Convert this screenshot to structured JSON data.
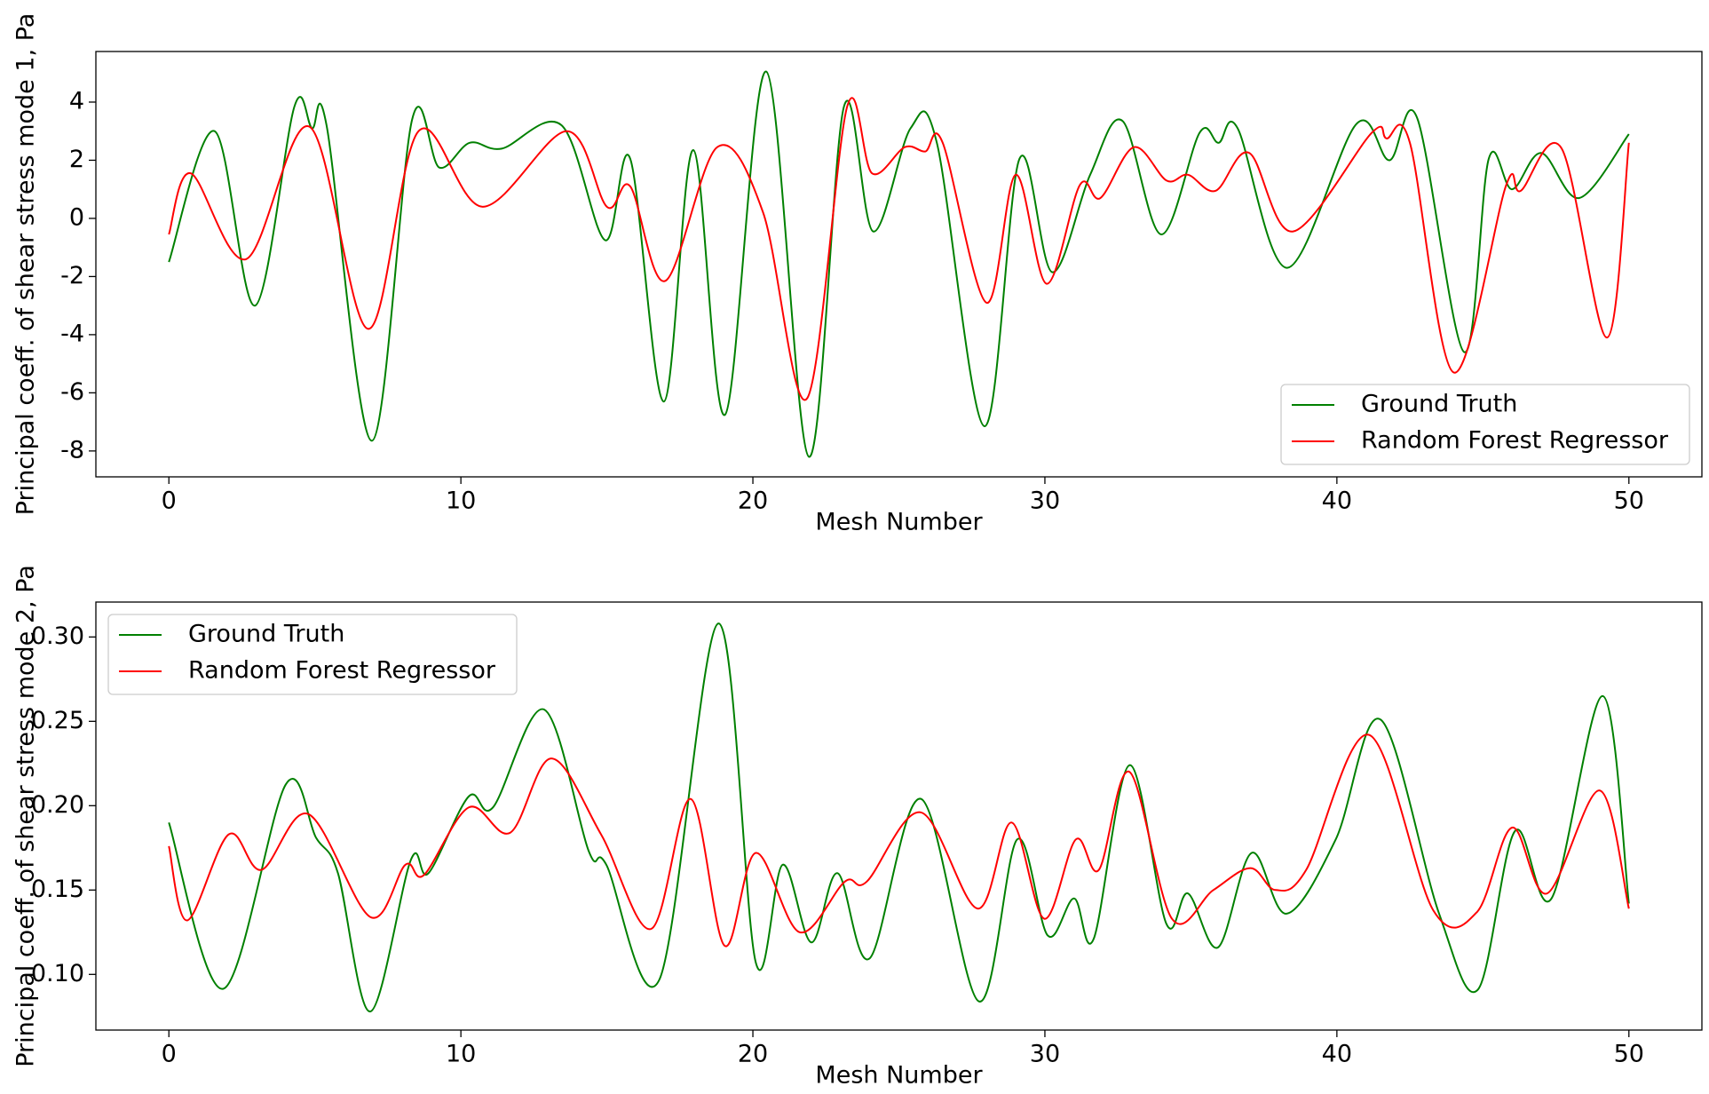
{
  "chart_data": [
    {
      "type": "line",
      "ylabel": "Principal coeff. of shear stress mode 1, Pa",
      "xlabel": "Mesh Number",
      "xlim": [
        -2.5,
        52.5
      ],
      "ylim": [
        -8.89,
        5.74
      ],
      "xticks": [
        0,
        10,
        20,
        30,
        40,
        50
      ],
      "yticks": [
        -8,
        -6,
        -4,
        -2,
        0,
        2,
        4
      ],
      "legend": "lower right",
      "series": [
        {
          "name": "Ground Truth",
          "color": "#008000",
          "x": [
            0,
            1.57,
            2.95,
            4.3,
            4.9,
            5.4,
            6.95,
            8.33,
            9.26,
            10.3,
            11.4,
            13.45,
            14.94,
            15.8,
            16.95,
            17.96,
            19.05,
            20.46,
            21.92,
            23.12,
            24.12,
            25.4,
            26.3,
            27.93,
            29.13,
            30.25,
            31.55,
            32.66,
            33.98,
            35.3,
            35.95,
            36.6,
            38.3,
            40.67,
            41.8,
            42.75,
            44.36,
            45.2,
            46.0,
            47.0,
            48.3,
            50
          ],
          "values": [
            -1.5,
            3.0,
            -3.0,
            3.85,
            3.1,
            3.2,
            -7.65,
            3.4,
            1.75,
            2.6,
            2.4,
            3.2,
            -0.75,
            2.05,
            -6.3,
            2.35,
            -6.75,
            5.05,
            -8.2,
            3.85,
            -0.45,
            3.1,
            2.6,
            -7.15,
            2.05,
            -1.85,
            1.5,
            3.35,
            -0.55,
            2.95,
            2.6,
            3.1,
            -1.7,
            3.25,
            2.0,
            3.45,
            -4.6,
            2.05,
            1.0,
            2.25,
            0.7,
            2.9
          ]
        },
        {
          "name": "Random Forest Regressor",
          "color": "#ff0000",
          "x": [
            0,
            0.75,
            2.65,
            4.82,
            6.83,
            8.55,
            10.75,
            13.63,
            15.0,
            15.8,
            17.0,
            18.78,
            20.35,
            21.85,
            23.23,
            24.08,
            25.2,
            25.9,
            26.5,
            28.0,
            29.0,
            30.06,
            31.2,
            31.9,
            33.05,
            34.17,
            34.9,
            35.85,
            37.0,
            38.5,
            41.2,
            41.7,
            42.5,
            44.0,
            45.8,
            46.3,
            47.7,
            49.25,
            50
          ],
          "values": [
            -0.55,
            1.55,
            -1.4,
            3.15,
            -3.8,
            3.0,
            0.4,
            3.0,
            0.4,
            1.1,
            -2.15,
            2.45,
            0.2,
            -6.2,
            3.85,
            1.55,
            2.45,
            2.3,
            2.6,
            -2.9,
            1.5,
            -2.25,
            1.15,
            0.7,
            2.45,
            1.3,
            1.5,
            0.95,
            2.25,
            -0.45,
            2.95,
            2.75,
            2.6,
            -5.3,
            1.15,
            0.95,
            2.4,
            -4.1,
            2.6
          ]
        }
      ]
    },
    {
      "type": "line",
      "ylabel": "Principal coeff. of shear stress mode 2, Pa",
      "xlabel": "Mesh Number",
      "xlim": [
        -2.5,
        52.5
      ],
      "ylim": [
        0.067,
        0.3207
      ],
      "xticks": [
        0,
        10,
        20,
        30,
        40,
        50
      ],
      "yticks": [
        {
          "value": 0.1,
          "label": "0.10"
        },
        {
          "value": 0.15,
          "label": "0.15"
        },
        {
          "value": 0.2,
          "label": "0.20"
        },
        {
          "value": 0.25,
          "label": "0.25"
        },
        {
          "value": 0.3,
          "label": "0.30"
        }
      ],
      "legend": "upper left",
      "series": [
        {
          "name": "Ground Truth",
          "color": "#008000",
          "x": [
            0,
            1.87,
            4.0,
            5.04,
            5.79,
            6.9,
            8.29,
            8.89,
            10.27,
            11.1,
            12.85,
            14.38,
            14.98,
            16.8,
            18.82,
            20.1,
            21.02,
            22.0,
            22.9,
            24.0,
            25.76,
            27.74,
            29.05,
            30.1,
            31.0,
            31.67,
            32.9,
            34.16,
            34.9,
            35.93,
            37.08,
            38.28,
            39.96,
            41.5,
            43.5,
            44.83,
            46.1,
            47.35,
            49.1,
            50
          ],
          "values": [
            0.19,
            0.0915,
            0.2125,
            0.181,
            0.16,
            0.078,
            0.168,
            0.16,
            0.2055,
            0.199,
            0.257,
            0.173,
            0.165,
            0.097,
            0.308,
            0.107,
            0.165,
            0.119,
            0.16,
            0.1095,
            0.204,
            0.084,
            0.18,
            0.123,
            0.145,
            0.121,
            0.224,
            0.13,
            0.148,
            0.116,
            0.172,
            0.136,
            0.18,
            0.251,
            0.136,
            0.091,
            0.185,
            0.145,
            0.265,
            0.142
          ]
        },
        {
          "name": "Random Forest Regressor",
          "color": "#ff0000",
          "x": [
            0,
            0.63,
            2.05,
            3.17,
            4.78,
            6.9,
            8.1,
            8.74,
            10.27,
            11.69,
            13.1,
            14.8,
            16.52,
            17.87,
            19.03,
            20.1,
            21.6,
            23.15,
            23.9,
            25.76,
            27.7,
            28.86,
            29.98,
            31.06,
            31.85,
            32.9,
            34.35,
            35.77,
            37.04,
            37.9,
            38.95,
            41.1,
            43.3,
            44.8,
            46.0,
            47.2,
            49.0,
            50
          ],
          "values": [
            0.176,
            0.132,
            0.183,
            0.162,
            0.195,
            0.134,
            0.165,
            0.159,
            0.199,
            0.184,
            0.228,
            0.183,
            0.127,
            0.204,
            0.117,
            0.172,
            0.125,
            0.155,
            0.155,
            0.196,
            0.139,
            0.19,
            0.133,
            0.18,
            0.162,
            0.22,
            0.133,
            0.15,
            0.163,
            0.15,
            0.162,
            0.242,
            0.138,
            0.137,
            0.187,
            0.148,
            0.209,
            0.139
          ]
        }
      ]
    }
  ]
}
